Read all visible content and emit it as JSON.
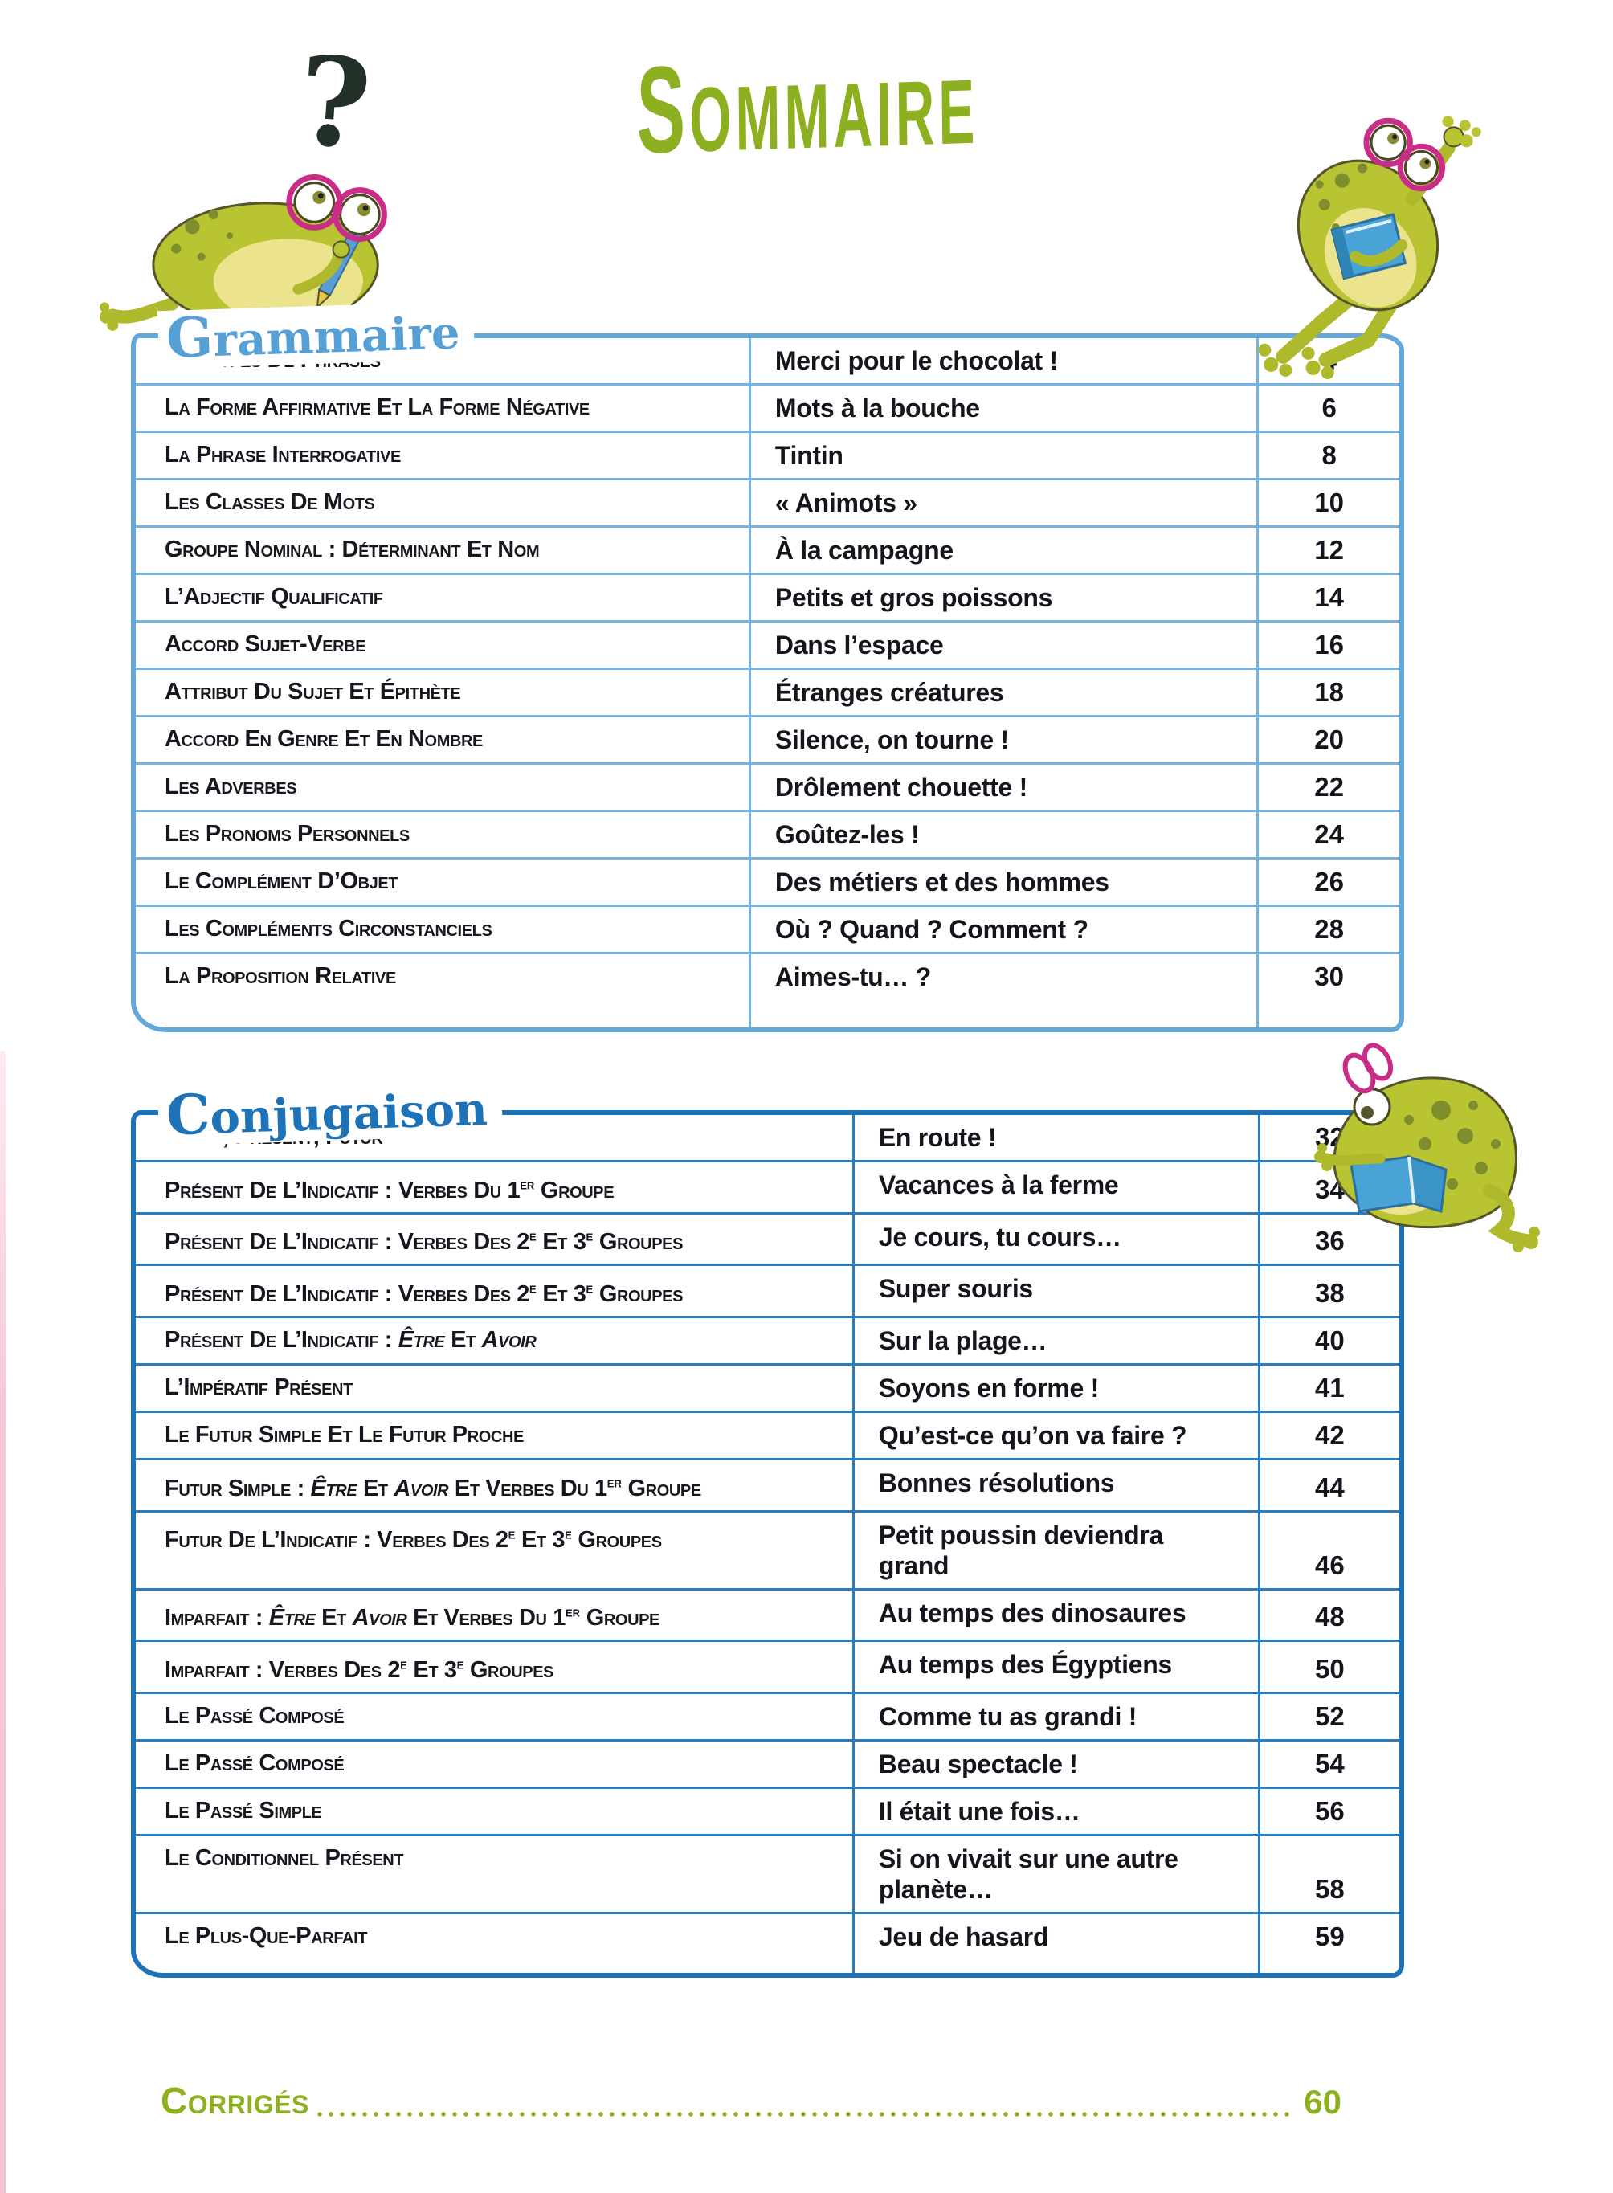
{
  "page": {
    "title": "Sommaire",
    "question_mark": "?",
    "footer": {
      "label": "Corrigés",
      "page": "60"
    }
  },
  "colors": {
    "accent_green": "#8cb01f",
    "grammaire_blue": "#57a0d6",
    "conjugaison_blue": "#1d72b8",
    "text_dark": "#17171f",
    "glasses_pink": "#c92d88",
    "book_blue": "#49a3d6"
  },
  "sections": [
    {
      "heading": "Grammaire",
      "rows": [
        {
          "topic_html": "Les Types De Phrases",
          "title": "Merci pour le chocolat !",
          "page": "4"
        },
        {
          "topic_html": "La Forme Affirmative Et La Forme Négative",
          "title": "Mots à la bouche",
          "page": "6"
        },
        {
          "topic_html": "La Phrase Interrogative",
          "title": "Tintin",
          "page": "8"
        },
        {
          "topic_html": "Les Classes De Mots",
          "title": "« Animots »",
          "page": "10"
        },
        {
          "topic_html": "Groupe Nominal : Déterminant Et Nom",
          "title": "À la campagne",
          "page": "12"
        },
        {
          "topic_html": "L’Adjectif Qualificatif",
          "title": "Petits et gros poissons",
          "page": "14"
        },
        {
          "topic_html": "Accord Sujet-Verbe",
          "title": "Dans l’espace",
          "page": "16"
        },
        {
          "topic_html": "Attribut Du Sujet Et Épithète",
          "title": "Étranges créatures",
          "page": "18"
        },
        {
          "topic_html": "Accord En Genre Et En Nombre",
          "title": "Silence, on tourne !",
          "page": "20"
        },
        {
          "topic_html": "Les Adverbes",
          "title": "Drôlement chouette !",
          "page": "22"
        },
        {
          "topic_html": "Les Pronoms Personnels",
          "title": "Goûtez-les !",
          "page": "24"
        },
        {
          "topic_html": "Le Complément D’Objet",
          "title": "Des métiers et des hommes",
          "page": "26"
        },
        {
          "topic_html": "Les Compléments Circonstanciels",
          "title": "Où ? Quand ? Comment ?",
          "page": "28"
        },
        {
          "topic_html": "La Proposition Relative",
          "title": "Aimes-tu… ?",
          "page": "30"
        }
      ]
    },
    {
      "heading": "Conjugaison",
      "rows": [
        {
          "topic_html": "Passé, Présent, Futur",
          "title": "En route !",
          "page": "32"
        },
        {
          "topic_html": "Présent De L’Indicatif : Verbes Du 1<sup>er</sup> Groupe",
          "title": "Vacances à la ferme",
          "page": "34"
        },
        {
          "topic_html": "Présent De L’Indicatif : Verbes Des 2<sup>e</sup> Et 3<sup>e</sup> Groupes",
          "title": "Je cours, tu cours…",
          "page": "36"
        },
        {
          "topic_html": "Présent De L’Indicatif : Verbes Des 2<sup>e</sup> Et 3<sup>e</sup> Groupes",
          "title": "Super souris",
          "page": "38"
        },
        {
          "topic_html": "Présent De L’Indicatif : <i>Être</i> Et <i>Avoir</i>",
          "title": "Sur la plage…",
          "page": "40"
        },
        {
          "topic_html": "L’Impératif Présent",
          "title": "Soyons en forme !",
          "page": "41"
        },
        {
          "topic_html": "Le Futur Simple Et Le Futur Proche",
          "title": "Qu’est-ce qu’on va faire ?",
          "page": "42"
        },
        {
          "topic_html": "Futur Simple : <i>Être</i> Et <i>Avoir</i> Et Verbes Du 1<sup>er</sup> Groupe",
          "title": "Bonnes résolutions",
          "page": "44"
        },
        {
          "topic_html": "Futur De L’Indicatif : Verbes Des 2<sup>e</sup> Et 3<sup>e</sup> Groupes",
          "title": "Petit poussin deviendra grand",
          "page": "46"
        },
        {
          "topic_html": "Imparfait : <i>Être</i> Et <i>Avoir</i> Et Verbes Du 1<sup>er</sup> Groupe",
          "title": "Au temps des dinosaures",
          "page": "48"
        },
        {
          "topic_html": "Imparfait : Verbes Des 2<sup>e</sup> Et 3<sup>e</sup> Groupes",
          "title": "Au temps des Égyptiens",
          "page": "50"
        },
        {
          "topic_html": "Le Passé Composé",
          "title": "Comme tu as grandi !",
          "page": "52"
        },
        {
          "topic_html": "Le Passé Composé",
          "title": "Beau spectacle !",
          "page": "54"
        },
        {
          "topic_html": "Le Passé Simple",
          "title": "Il était une fois…",
          "page": "56"
        },
        {
          "topic_html": "Le Conditionnel Présent",
          "title": "Si on vivait sur une autre planète…",
          "page": "58"
        },
        {
          "topic_html": "Le Plus-Que-Parfait",
          "title": "Jeu de hasard",
          "page": "59"
        }
      ]
    }
  ]
}
